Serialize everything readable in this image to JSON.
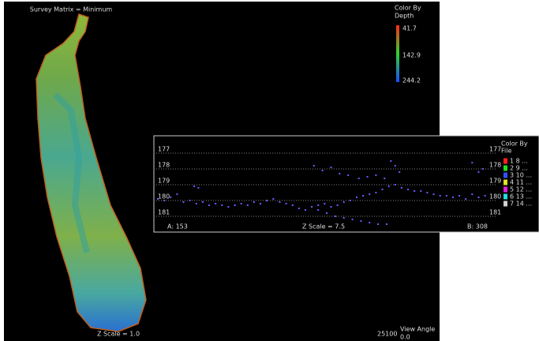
{
  "map": {
    "title": "Survey Matrix = Minimum",
    "legend_title": [
      "Color By",
      "Depth"
    ],
    "legend_labels": [
      "41.7",
      "142.9",
      "244.2"
    ],
    "z_scale": "Z Scale = 1.0",
    "footer_value": "25100",
    "view_angle": [
      "View Angle",
      "0.0"
    ]
  },
  "chart_data": {
    "type": "scatter",
    "legend_title": [
      "Color By",
      "File"
    ],
    "files": [
      {
        "label": "1  8  ...",
        "color": "#ff2020"
      },
      {
        "label": "2  9  ...",
        "color": "#20e020"
      },
      {
        "label": "3  10 ...",
        "color": "#3050ff"
      },
      {
        "label": "4  11 ...",
        "color": "#e0e020"
      },
      {
        "label": "5  12 ...",
        "color": "#e020e0"
      },
      {
        "label": "6  13 ...",
        "color": "#20e0e0"
      },
      {
        "label": "7  14 ...",
        "color": "#d0d0d0"
      }
    ],
    "left_label": "A: 153",
    "center_label": "Z Scale = 7.5",
    "right_label": "B: 308",
    "xlim": [
      153,
      308
    ],
    "ylim": [
      181.4,
      176.6
    ],
    "yticks": [
      177,
      178,
      179,
      180,
      181
    ],
    "grid": true,
    "series": [
      {
        "color": "#6a5cff",
        "x": [
          153,
          156,
          159,
          162,
          165,
          168,
          171,
          174,
          177,
          180,
          183,
          186,
          189,
          192,
          195,
          198,
          201,
          204,
          207,
          210,
          213,
          216,
          219,
          222,
          225,
          228,
          231,
          234,
          237,
          240,
          243,
          246,
          249,
          252,
          255,
          258,
          261,
          264,
          267,
          270,
          273,
          276,
          279,
          282,
          285,
          288,
          291,
          294,
          297,
          300,
          303,
          306,
          226,
          230,
          234,
          238,
          242,
          247,
          251,
          255,
          259,
          262,
          264,
          266,
          228,
          232,
          236,
          240,
          244,
          248,
          252,
          256,
          260,
          170,
          172,
          300,
          303,
          305
        ],
        "values": [
          179.9,
          180,
          179.8,
          179.6,
          180.1,
          180.0,
          180.2,
          180.1,
          180.3,
          180.2,
          180.3,
          180.4,
          180.3,
          180.2,
          180.3,
          180.1,
          180.2,
          180.0,
          179.9,
          180.1,
          180.2,
          180.3,
          180.5,
          180.6,
          180.4,
          180.3,
          180.2,
          180.4,
          180.3,
          180.1,
          180.0,
          179.8,
          179.7,
          179.6,
          179.5,
          179.3,
          179.1,
          179.0,
          179.2,
          179.3,
          179.4,
          179.4,
          179.5,
          179.6,
          179.7,
          179.7,
          179.8,
          179.7,
          179.9,
          179.6,
          179.8,
          179.7,
          177.8,
          178.1,
          177.9,
          178.3,
          178.4,
          178.6,
          178.5,
          178.4,
          178.6,
          177.5,
          177.8,
          178.2,
          180.6,
          180.8,
          181.0,
          181.1,
          181.2,
          181.3,
          181.4,
          181.5,
          181.5,
          179.1,
          179.2,
          177.6,
          178.2,
          178.0
        ]
      }
    ]
  }
}
